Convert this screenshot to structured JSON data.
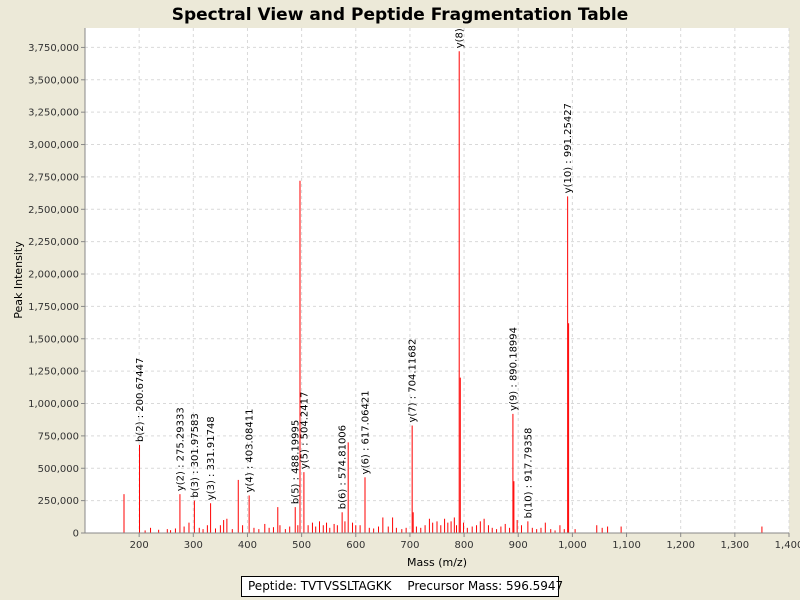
{
  "chart_data": {
    "type": "bar",
    "title": "Spectral View and Peptide Fragmentation Table",
    "xlabel": "Mass (m/z)",
    "ylabel": "Peak Intensity",
    "xlim": [
      100,
      1400
    ],
    "ylim": [
      0,
      3900000
    ],
    "xticks": [
      200,
      300,
      400,
      500,
      600,
      700,
      800,
      900,
      1000,
      1100,
      1200,
      1300,
      1400
    ],
    "xtick_labels": [
      "200",
      "300",
      "400",
      "500",
      "600",
      "700",
      "800",
      "900",
      "1,000",
      "1,100",
      "1,200",
      "1,300",
      "1,400"
    ],
    "yticks": [
      0,
      250000,
      500000,
      750000,
      1000000,
      1250000,
      1500000,
      1750000,
      2000000,
      2250000,
      2500000,
      2750000,
      3000000,
      3250000,
      3500000,
      3750000
    ],
    "ytick_labels": [
      "0",
      "250,000",
      "500,000",
      "750,000",
      "1,000,000",
      "1,250,000",
      "1,500,000",
      "1,750,000",
      "2,000,000",
      "2,250,000",
      "2,500,000",
      "2,750,000",
      "3,000,000",
      "3,250,000",
      "3,500,000",
      "3,750,000"
    ],
    "grid": true,
    "bar_color": "#ff0000",
    "peaks": [
      [
        172,
        300000
      ],
      [
        200.67,
        680000
      ],
      [
        211,
        20000
      ],
      [
        221,
        40000
      ],
      [
        236,
        25000
      ],
      [
        252,
        30000
      ],
      [
        258,
        22000
      ],
      [
        267,
        35000
      ],
      [
        275.29,
        300000
      ],
      [
        283,
        50000
      ],
      [
        292,
        80000
      ],
      [
        301.98,
        250000
      ],
      [
        311,
        40000
      ],
      [
        318,
        30000
      ],
      [
        326,
        60000
      ],
      [
        331.92,
        230000
      ],
      [
        341,
        35000
      ],
      [
        350,
        60000
      ],
      [
        356,
        100000
      ],
      [
        362,
        110000
      ],
      [
        372,
        30000
      ],
      [
        383,
        410000
      ],
      [
        391,
        60000
      ],
      [
        403.08,
        290000
      ],
      [
        412,
        40000
      ],
      [
        421,
        30000
      ],
      [
        432,
        70000
      ],
      [
        440,
        40000
      ],
      [
        448,
        45000
      ],
      [
        456,
        200000
      ],
      [
        460,
        60000
      ],
      [
        470,
        30000
      ],
      [
        478,
        50000
      ],
      [
        488.2,
        200000
      ],
      [
        493,
        60000
      ],
      [
        497,
        2720000
      ],
      [
        504.24,
        470000
      ],
      [
        512,
        60000
      ],
      [
        520,
        80000
      ],
      [
        526,
        50000
      ],
      [
        533,
        90000
      ],
      [
        540,
        60000
      ],
      [
        546,
        80000
      ],
      [
        552,
        40000
      ],
      [
        560,
        70000
      ],
      [
        566,
        60000
      ],
      [
        574.81,
        160000
      ],
      [
        580,
        90000
      ],
      [
        586,
        700000
      ],
      [
        594,
        80000
      ],
      [
        600,
        60000
      ],
      [
        608,
        60000
      ],
      [
        617.06,
        430000
      ],
      [
        625,
        40000
      ],
      [
        633,
        35000
      ],
      [
        642,
        50000
      ],
      [
        650,
        120000
      ],
      [
        660,
        50000
      ],
      [
        668,
        120000
      ],
      [
        675,
        40000
      ],
      [
        685,
        30000
      ],
      [
        693,
        40000
      ],
      [
        704.12,
        830000
      ],
      [
        706,
        160000
      ],
      [
        712,
        50000
      ],
      [
        720,
        40000
      ],
      [
        728,
        60000
      ],
      [
        736,
        110000
      ],
      [
        742,
        80000
      ],
      [
        750,
        90000
      ],
      [
        757,
        60000
      ],
      [
        764,
        110000
      ],
      [
        770,
        80000
      ],
      [
        776,
        90000
      ],
      [
        782,
        120000
      ],
      [
        786,
        60000
      ],
      [
        791,
        3720000
      ],
      [
        793,
        1200000
      ],
      [
        799,
        80000
      ],
      [
        806,
        40000
      ],
      [
        815,
        50000
      ],
      [
        823,
        60000
      ],
      [
        830,
        90000
      ],
      [
        837,
        110000
      ],
      [
        845,
        60000
      ],
      [
        852,
        40000
      ],
      [
        860,
        30000
      ],
      [
        868,
        50000
      ],
      [
        876,
        70000
      ],
      [
        884,
        40000
      ],
      [
        890.19,
        920000
      ],
      [
        892,
        400000
      ],
      [
        898,
        100000
      ],
      [
        906,
        60000
      ],
      [
        917.79,
        90000
      ],
      [
        926,
        40000
      ],
      [
        934,
        30000
      ],
      [
        942,
        40000
      ],
      [
        950,
        80000
      ],
      [
        960,
        30000
      ],
      [
        968,
        20000
      ],
      [
        977,
        60000
      ],
      [
        985,
        30000
      ],
      [
        991.25,
        2600000
      ],
      [
        993,
        1620000
      ],
      [
        1005,
        30000
      ],
      [
        1045,
        60000
      ],
      [
        1055,
        40000
      ],
      [
        1065,
        50000
      ],
      [
        1090,
        50000
      ],
      [
        1350,
        50000
      ]
    ],
    "annotations": [
      {
        "x": 200.67,
        "y": 680000,
        "label": "b(2) : 200.67447"
      },
      {
        "x": 275.29,
        "y": 300000,
        "label": "y(2) : 275.29333"
      },
      {
        "x": 301.98,
        "y": 250000,
        "label": "b(3) : 301.97583"
      },
      {
        "x": 331.92,
        "y": 230000,
        "label": "y(3) : 331.91748"
      },
      {
        "x": 403.08,
        "y": 290000,
        "label": "y(4) : 403.08411"
      },
      {
        "x": 488.2,
        "y": 200000,
        "label": "b(5) : 488.19995"
      },
      {
        "x": 504.24,
        "y": 470000,
        "label": "y(5) : 504.2417"
      },
      {
        "x": 574.81,
        "y": 160000,
        "label": "b(6) : 574.81006"
      },
      {
        "x": 617.06,
        "y": 430000,
        "label": "y(6) : 617.06421"
      },
      {
        "x": 704.12,
        "y": 830000,
        "label": "y(7) : 704.11682"
      },
      {
        "x": 791,
        "y": 3720000,
        "label": "y(8)"
      },
      {
        "x": 890.19,
        "y": 920000,
        "label": "y(9) : 890.18994"
      },
      {
        "x": 917.79,
        "y": 90000,
        "label": "b(10) : 917.79358"
      },
      {
        "x": 991.25,
        "y": 2600000,
        "label": "y(10) : 991.25427"
      }
    ]
  },
  "caption": {
    "peptide": "Peptide: TVTVSSLTAGKK",
    "precursor": "Precursor Mass: 596.5947"
  }
}
